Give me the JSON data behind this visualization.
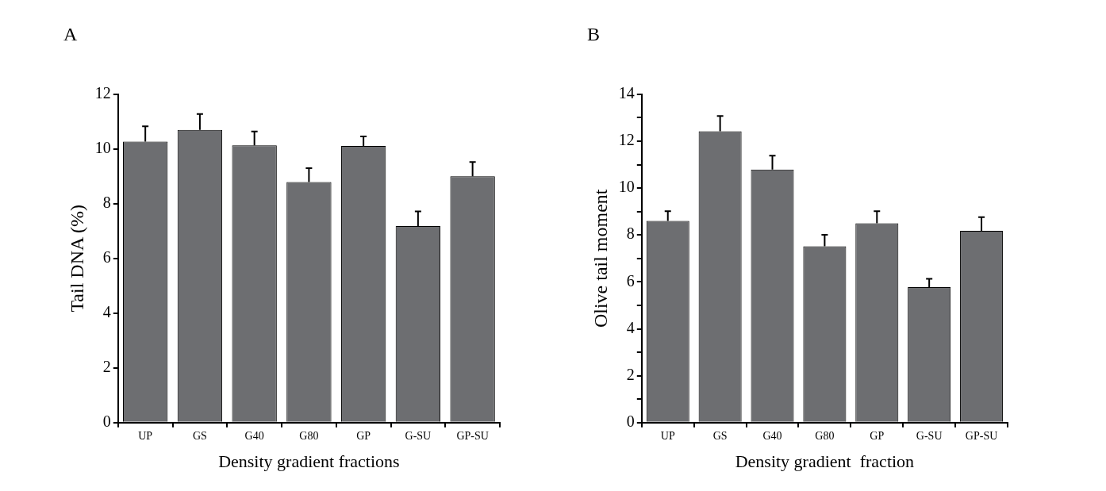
{
  "chart_data": [
    {
      "type": "bar",
      "title": "A",
      "xlabel": "Density gradient fractions",
      "ylabel": "Tail DNA (%)",
      "categories": [
        "UP",
        "GS",
        "G40",
        "G80",
        "GP",
        "G-SU",
        "GP-SU"
      ],
      "color": "#6d6e71",
      "values": [
        10.27,
        10.7,
        10.13,
        8.79,
        10.11,
        7.18,
        9.0
      ],
      "errors": [
        [
          10.27,
          10.83
        ],
        [
          10.7,
          11.28
        ],
        [
          10.13,
          10.64
        ],
        [
          8.79,
          9.3
        ],
        [
          10.11,
          10.46
        ],
        [
          7.18,
          7.72
        ],
        [
          9.0,
          9.52
        ]
      ],
      "ylim": [
        0,
        12
      ],
      "yticks": [
        0,
        2,
        4,
        6,
        8,
        10,
        12
      ],
      "grid": false,
      "legend": false
    },
    {
      "type": "bar",
      "title": "B",
      "xlabel": "Density gradient  fraction",
      "ylabel": "Olive tail moment",
      "categories": [
        "UP",
        "GS",
        "G40",
        "G80",
        "GP",
        "G-SU",
        "GP-SU"
      ],
      "color": "#6d6e71",
      "values": [
        8.6,
        12.42,
        10.79,
        7.52,
        8.5,
        5.78,
        8.18
      ],
      "errors": [
        [
          8.6,
          9.01
        ],
        [
          12.42,
          13.07
        ],
        [
          10.79,
          11.38
        ],
        [
          7.52,
          8.01
        ],
        [
          8.5,
          9.01
        ],
        [
          5.78,
          6.13
        ],
        [
          8.18,
          8.76
        ]
      ],
      "ylim": [
        0,
        14
      ],
      "yticks": [
        0,
        {
          "value": 1,
          "label": null
        },
        2,
        {
          "value": 3,
          "label": null
        },
        4,
        {
          "value": 5,
          "label": null
        },
        6,
        {
          "value": 7,
          "label": null
        },
        8,
        {
          "value": 9,
          "label": null
        },
        10,
        {
          "value": 11,
          "label": null
        },
        12,
        {
          "value": 13,
          "label": null
        },
        14
      ],
      "grid": false,
      "legend": false
    }
  ]
}
